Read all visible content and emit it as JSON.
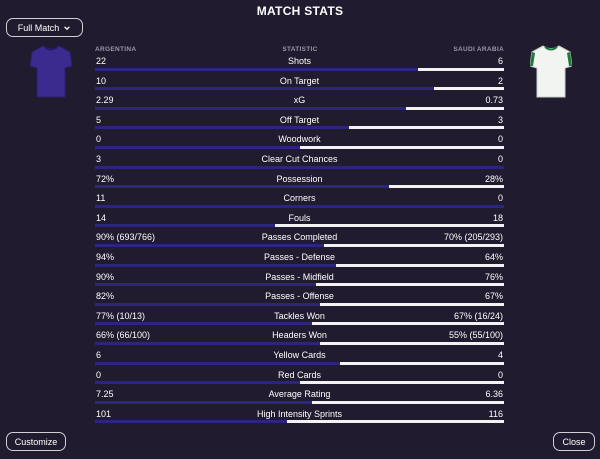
{
  "header": {
    "title": "MATCH STATS"
  },
  "period_select": {
    "label": "Full Match"
  },
  "columns": {
    "home": "ARGENTINA",
    "stat": "STATISTIC",
    "away": "SAUDI ARABIA"
  },
  "colors": {
    "home_bar": "#2b2580",
    "away_bar": "#f3f3f6",
    "background": "#201b2e",
    "home_kit": "#3b2b8f",
    "away_kit": "#f2f4f2",
    "away_kit_trim": "#1f7a3a"
  },
  "stats": [
    {
      "label": "Shots",
      "home": "22",
      "away": "6",
      "away_share": 0.21
    },
    {
      "label": "On Target",
      "home": "10",
      "away": "2",
      "away_share": 0.17
    },
    {
      "label": "xG",
      "home": "2.29",
      "away": "0.73",
      "away_share": 0.24
    },
    {
      "label": "Off Target",
      "home": "5",
      "away": "3",
      "away_share": 0.38
    },
    {
      "label": "Woodwork",
      "home": "0",
      "away": "0",
      "away_share": 0.5
    },
    {
      "label": "Clear Cut Chances",
      "home": "3",
      "away": "0",
      "away_share": 0.0
    },
    {
      "label": "Possession",
      "home": "72%",
      "away": "28%",
      "away_share": 0.28
    },
    {
      "label": "Corners",
      "home": "11",
      "away": "0",
      "away_share": 0.0
    },
    {
      "label": "Fouls",
      "home": "14",
      "away": "18",
      "away_share": 0.56
    },
    {
      "label": "Passes Completed",
      "home": "90% (693/766)",
      "away": "70% (205/293)",
      "away_share": 0.44
    },
    {
      "label": "Passes - Defense",
      "home": "94%",
      "away": "64%",
      "away_share": 0.41
    },
    {
      "label": "Passes - Midfield",
      "home": "90%",
      "away": "76%",
      "away_share": 0.46
    },
    {
      "label": "Passes - Offense",
      "home": "82%",
      "away": "67%",
      "away_share": 0.45
    },
    {
      "label": "Tackles Won",
      "home": "77% (10/13)",
      "away": "67% (16/24)",
      "away_share": 0.47
    },
    {
      "label": "Headers Won",
      "home": "66% (66/100)",
      "away": "55% (55/100)",
      "away_share": 0.45
    },
    {
      "label": "Yellow Cards",
      "home": "6",
      "away": "4",
      "away_share": 0.4
    },
    {
      "label": "Red Cards",
      "home": "0",
      "away": "0",
      "away_share": 0.5
    },
    {
      "label": "Average Rating",
      "home": "7.25",
      "away": "6.36",
      "away_share": 0.47
    },
    {
      "label": "High Intensity Sprints",
      "home": "101",
      "away": "116",
      "away_share": 0.53
    }
  ],
  "footer": {
    "customize_label": "Customize",
    "close_label": "Close"
  }
}
